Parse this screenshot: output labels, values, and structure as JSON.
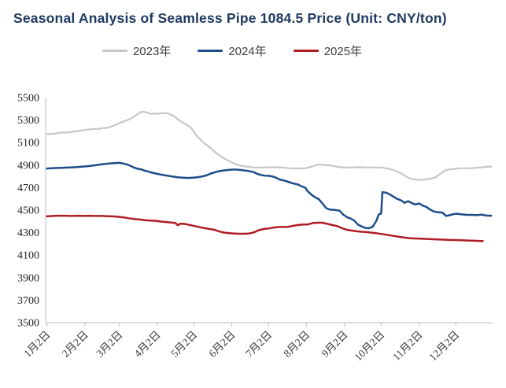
{
  "page": {
    "title": "Seasonal Analysis of Seamless Pipe 1084.5 Price (Unit: CNY/ton)"
  },
  "colors": {
    "title": "#1f3a60",
    "axis": "#c9c9c9",
    "y_tick_label": "#1f1f1f",
    "x_tick_label": "#3a3a3a",
    "legend_text": "#404040",
    "background": "#ffffff"
  },
  "chart_data": {
    "type": "line",
    "title": "Seasonal Analysis of Seamless Pipe 1084.5 Price (Unit: CNY/ton)",
    "unit": "CNY/ton",
    "grid": false,
    "legend_position": "top-center",
    "x_axis": {
      "tick_labels": [
        "1月2日",
        "2月2日",
        "3月2日",
        "4月2日",
        "5月2日",
        "6月2日",
        "7月2日",
        "8月2日",
        "9月2日",
        "10月2日",
        "11月2日",
        "12月2日"
      ],
      "tick_days": [
        1,
        32,
        60,
        91,
        121,
        152,
        182,
        213,
        244,
        274,
        305,
        335
      ],
      "range_days": [
        0,
        365
      ]
    },
    "y_axis": {
      "min": 3500,
      "max": 5500,
      "step": 200,
      "tick_labels": [
        "3500",
        "3700",
        "3900",
        "4100",
        "4300",
        "4500",
        "4700",
        "4900",
        "5100",
        "5300",
        "5500"
      ]
    },
    "series": [
      {
        "name": "2023年",
        "color": "#c7c7c7",
        "width": 2.2,
        "points": [
          [
            1,
            5175
          ],
          [
            5,
            5178
          ],
          [
            9,
            5182
          ],
          [
            13,
            5190
          ],
          [
            17,
            5188
          ],
          [
            21,
            5195
          ],
          [
            25,
            5200
          ],
          [
            29,
            5208
          ],
          [
            32,
            5212
          ],
          [
            36,
            5218
          ],
          [
            40,
            5222
          ],
          [
            44,
            5222
          ],
          [
            47,
            5230
          ],
          [
            50,
            5230
          ],
          [
            53,
            5240
          ],
          [
            57,
            5258
          ],
          [
            60,
            5272
          ],
          [
            63,
            5285
          ],
          [
            66,
            5298
          ],
          [
            69,
            5310
          ],
          [
            72,
            5330
          ],
          [
            75,
            5352
          ],
          [
            78,
            5372
          ],
          [
            80,
            5375
          ],
          [
            83,
            5365
          ],
          [
            86,
            5355
          ],
          [
            89,
            5360
          ],
          [
            91,
            5355
          ],
          [
            94,
            5360
          ],
          [
            97,
            5362
          ],
          [
            100,
            5358
          ],
          [
            103,
            5345
          ],
          [
            106,
            5325
          ],
          [
            109,
            5300
          ],
          [
            112,
            5278
          ],
          [
            115,
            5258
          ],
          [
            118,
            5240
          ],
          [
            120,
            5215
          ],
          [
            123,
            5165
          ],
          [
            127,
            5120
          ],
          [
            131,
            5082
          ],
          [
            135,
            5048
          ],
          [
            139,
            5010
          ],
          [
            143,
            4978
          ],
          [
            147,
            4952
          ],
          [
            151,
            4930
          ],
          [
            155,
            4908
          ],
          [
            160,
            4893
          ],
          [
            165,
            4885
          ],
          [
            170,
            4880
          ],
          [
            176,
            4878
          ],
          [
            182,
            4880
          ],
          [
            188,
            4882
          ],
          [
            194,
            4878
          ],
          [
            200,
            4872
          ],
          [
            206,
            4870
          ],
          [
            212,
            4872
          ],
          [
            218,
            4888
          ],
          [
            222,
            4905
          ],
          [
            227,
            4902
          ],
          [
            232,
            4898
          ],
          [
            238,
            4885
          ],
          [
            244,
            4878
          ],
          [
            250,
            4880
          ],
          [
            256,
            4882
          ],
          [
            262,
            4878
          ],
          [
            268,
            4880
          ],
          [
            274,
            4880
          ],
          [
            280,
            4868
          ],
          [
            285,
            4852
          ],
          [
            290,
            4828
          ],
          [
            294,
            4800
          ],
          [
            298,
            4778
          ],
          [
            302,
            4772
          ],
          [
            306,
            4768
          ],
          [
            310,
            4772
          ],
          [
            314,
            4778
          ],
          [
            318,
            4790
          ],
          [
            322,
            4822
          ],
          [
            326,
            4852
          ],
          [
            330,
            4862
          ],
          [
            335,
            4868
          ],
          [
            340,
            4872
          ],
          [
            345,
            4872
          ],
          [
            350,
            4875
          ],
          [
            355,
            4878
          ],
          [
            360,
            4885
          ],
          [
            364,
            4886
          ]
        ]
      },
      {
        "name": "2024年",
        "color": "#1d4e89",
        "width": 2.5,
        "points": [
          [
            1,
            4870
          ],
          [
            5,
            4872
          ],
          [
            9,
            4875
          ],
          [
            13,
            4875
          ],
          [
            17,
            4878
          ],
          [
            21,
            4880
          ],
          [
            25,
            4882
          ],
          [
            29,
            4885
          ],
          [
            32,
            4888
          ],
          [
            36,
            4892
          ],
          [
            40,
            4898
          ],
          [
            44,
            4905
          ],
          [
            48,
            4910
          ],
          [
            52,
            4915
          ],
          [
            56,
            4918
          ],
          [
            60,
            4920
          ],
          [
            63,
            4915
          ],
          [
            66,
            4908
          ],
          [
            69,
            4895
          ],
          [
            72,
            4880
          ],
          [
            75,
            4868
          ],
          [
            78,
            4862
          ],
          [
            81,
            4850
          ],
          [
            84,
            4842
          ],
          [
            87,
            4832
          ],
          [
            90,
            4825
          ],
          [
            93,
            4818
          ],
          [
            96,
            4812
          ],
          [
            100,
            4805
          ],
          [
            104,
            4798
          ],
          [
            108,
            4792
          ],
          [
            112,
            4788
          ],
          [
            116,
            4786
          ],
          [
            120,
            4788
          ],
          [
            124,
            4792
          ],
          [
            128,
            4800
          ],
          [
            131,
            4808
          ],
          [
            134,
            4822
          ],
          [
            137,
            4832
          ],
          [
            140,
            4842
          ],
          [
            144,
            4850
          ],
          [
            148,
            4856
          ],
          [
            152,
            4860
          ],
          [
            156,
            4860
          ],
          [
            160,
            4856
          ],
          [
            164,
            4850
          ],
          [
            167,
            4845
          ],
          [
            170,
            4838
          ],
          [
            173,
            4822
          ],
          [
            176,
            4812
          ],
          [
            179,
            4806
          ],
          [
            182,
            4805
          ],
          [
            185,
            4800
          ],
          [
            188,
            4788
          ],
          [
            191,
            4772
          ],
          [
            194,
            4765
          ],
          [
            197,
            4755
          ],
          [
            200,
            4745
          ],
          [
            203,
            4735
          ],
          [
            206,
            4728
          ],
          [
            209,
            4712
          ],
          [
            212,
            4700
          ],
          [
            214,
            4668
          ],
          [
            217,
            4638
          ],
          [
            220,
            4615
          ],
          [
            223,
            4598
          ],
          [
            226,
            4560
          ],
          [
            229,
            4518
          ],
          [
            232,
            4505
          ],
          [
            236,
            4502
          ],
          [
            240,
            4495
          ],
          [
            243,
            4460
          ],
          [
            246,
            4438
          ],
          [
            249,
            4425
          ],
          [
            252,
            4408
          ],
          [
            255,
            4372
          ],
          [
            258,
            4355
          ],
          [
            261,
            4342
          ],
          [
            264,
            4340
          ],
          [
            267,
            4352
          ],
          [
            270,
            4405
          ],
          [
            272,
            4462
          ],
          [
            274,
            4470
          ],
          [
            275,
            4660
          ],
          [
            278,
            4655
          ],
          [
            281,
            4640
          ],
          [
            284,
            4620
          ],
          [
            287,
            4600
          ],
          [
            290,
            4588
          ],
          [
            293,
            4565
          ],
          [
            296,
            4580
          ],
          [
            299,
            4562
          ],
          [
            302,
            4550
          ],
          [
            305,
            4560
          ],
          [
            308,
            4540
          ],
          [
            311,
            4528
          ],
          [
            314,
            4505
          ],
          [
            317,
            4488
          ],
          [
            320,
            4482
          ],
          [
            324,
            4478
          ],
          [
            327,
            4448
          ],
          [
            330,
            4455
          ],
          [
            333,
            4465
          ],
          [
            336,
            4468
          ],
          [
            340,
            4462
          ],
          [
            344,
            4458
          ],
          [
            348,
            4458
          ],
          [
            352,
            4455
          ],
          [
            356,
            4460
          ],
          [
            360,
            4452
          ],
          [
            364,
            4450
          ]
        ]
      },
      {
        "name": "2025年",
        "color": "#b01c24",
        "width": 2.5,
        "points": [
          [
            1,
            4445
          ],
          [
            6,
            4448
          ],
          [
            11,
            4450
          ],
          [
            16,
            4450
          ],
          [
            21,
            4448
          ],
          [
            26,
            4450
          ],
          [
            31,
            4448
          ],
          [
            36,
            4450
          ],
          [
            41,
            4448
          ],
          [
            46,
            4448
          ],
          [
            51,
            4446
          ],
          [
            56,
            4444
          ],
          [
            60,
            4440
          ],
          [
            64,
            4435
          ],
          [
            68,
            4428
          ],
          [
            72,
            4422
          ],
          [
            76,
            4418
          ],
          [
            80,
            4412
          ],
          [
            85,
            4408
          ],
          [
            90,
            4405
          ],
          [
            95,
            4398
          ],
          [
            100,
            4392
          ],
          [
            104,
            4388
          ],
          [
            106,
            4385
          ],
          [
            108,
            4365
          ],
          [
            110,
            4380
          ],
          [
            113,
            4378
          ],
          [
            116,
            4372
          ],
          [
            119,
            4365
          ],
          [
            122,
            4358
          ],
          [
            126,
            4348
          ],
          [
            130,
            4340
          ],
          [
            134,
            4332
          ],
          [
            138,
            4325
          ],
          [
            142,
            4310
          ],
          [
            146,
            4300
          ],
          [
            150,
            4295
          ],
          [
            154,
            4292
          ],
          [
            158,
            4290
          ],
          [
            162,
            4290
          ],
          [
            166,
            4292
          ],
          [
            170,
            4302
          ],
          [
            174,
            4322
          ],
          [
            178,
            4332
          ],
          [
            182,
            4338
          ],
          [
            186,
            4345
          ],
          [
            190,
            4350
          ],
          [
            194,
            4350
          ],
          [
            198,
            4352
          ],
          [
            202,
            4360
          ],
          [
            206,
            4368
          ],
          [
            210,
            4372
          ],
          [
            214,
            4372
          ],
          [
            218,
            4385
          ],
          [
            222,
            4388
          ],
          [
            226,
            4388
          ],
          [
            230,
            4378
          ],
          [
            234,
            4368
          ],
          [
            238,
            4358
          ],
          [
            242,
            4340
          ],
          [
            246,
            4325
          ],
          [
            250,
            4318
          ],
          [
            254,
            4312
          ],
          [
            258,
            4308
          ],
          [
            262,
            4305
          ],
          [
            266,
            4300
          ],
          [
            270,
            4295
          ],
          [
            274,
            4288
          ],
          [
            278,
            4282
          ],
          [
            282,
            4275
          ],
          [
            286,
            4268
          ],
          [
            290,
            4260
          ],
          [
            294,
            4255
          ],
          [
            298,
            4250
          ],
          [
            302,
            4248
          ],
          [
            306,
            4246
          ],
          [
            310,
            4245
          ],
          [
            315,
            4242
          ],
          [
            320,
            4240
          ],
          [
            325,
            4238
          ],
          [
            330,
            4235
          ],
          [
            335,
            4234
          ],
          [
            340,
            4232
          ],
          [
            345,
            4230
          ],
          [
            350,
            4228
          ],
          [
            355,
            4226
          ],
          [
            357,
            4225
          ]
        ]
      }
    ]
  }
}
